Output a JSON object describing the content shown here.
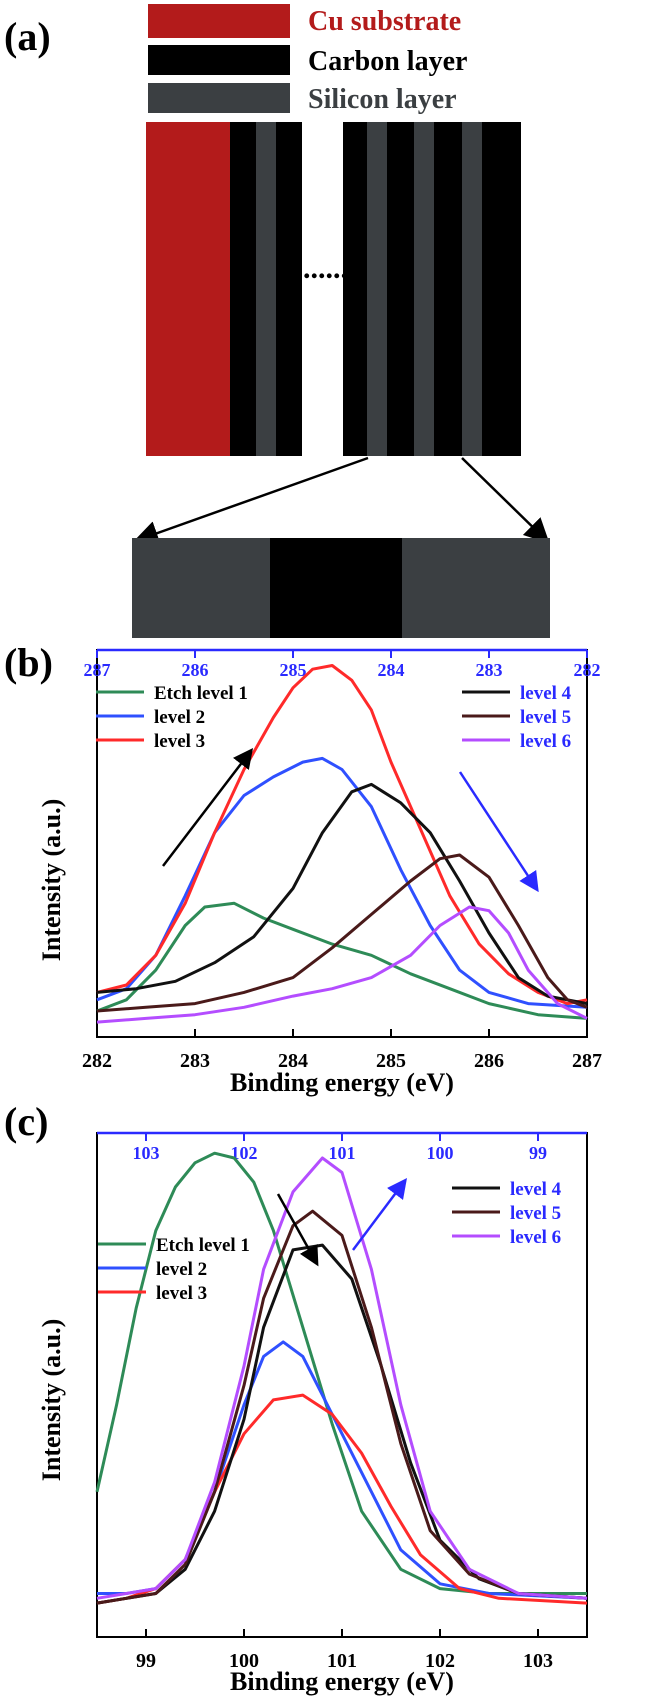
{
  "panel_a": {
    "label": "(a)",
    "legend": [
      {
        "text": "Cu substrate",
        "color": "#b31b1b",
        "text_color": "#b31b1b"
      },
      {
        "text": "Carbon layer",
        "color": "#000000",
        "text_color": "#000000"
      },
      {
        "text": "Silicon layer",
        "color": "#3b3f42",
        "text_color": "#3b3f42"
      }
    ],
    "ellipsis": "......"
  },
  "colors": {
    "etch1": "#2e8b57",
    "level2": "#2f50ff",
    "level3": "#ff2a2a",
    "level4": "#111111",
    "level5": "#4a1a1a",
    "level6": "#b44dff",
    "top_axis": "#2a2aff"
  },
  "chart_data": [
    {
      "type": "line",
      "panel_label": "(b)",
      "xlabel": "Binding energy (eV)",
      "ylabel": "Intensity (a.u.)",
      "xlim": [
        282,
        287
      ],
      "x_ticks": [
        "282",
        "283",
        "284",
        "285",
        "286",
        "287"
      ],
      "top_xlim": [
        287,
        282
      ],
      "top_ticks": [
        "287",
        "286",
        "285",
        "284",
        "283",
        "282"
      ],
      "legend_left": [
        "Etch level 1",
        "level 2",
        "level 3"
      ],
      "legend_right": [
        "level 4",
        "level 5",
        "level 6"
      ],
      "series": [
        {
          "name": "Etch level 1",
          "axis": "bottom",
          "color_key": "etch1",
          "points": [
            [
              282.0,
              0.07
            ],
            [
              282.3,
              0.1
            ],
            [
              282.6,
              0.18
            ],
            [
              282.9,
              0.3
            ],
            [
              283.1,
              0.35
            ],
            [
              283.4,
              0.36
            ],
            [
              283.7,
              0.32
            ],
            [
              284.0,
              0.29
            ],
            [
              284.4,
              0.25
            ],
            [
              284.8,
              0.22
            ],
            [
              285.2,
              0.17
            ],
            [
              285.6,
              0.13
            ],
            [
              286.0,
              0.09
            ],
            [
              286.5,
              0.06
            ],
            [
              287.0,
              0.05
            ]
          ]
        },
        {
          "name": "level 2",
          "axis": "bottom",
          "color_key": "level2",
          "points": [
            [
              282.0,
              0.1
            ],
            [
              282.3,
              0.13
            ],
            [
              282.6,
              0.22
            ],
            [
              282.9,
              0.38
            ],
            [
              283.2,
              0.55
            ],
            [
              283.5,
              0.65
            ],
            [
              283.8,
              0.7
            ],
            [
              284.1,
              0.74
            ],
            [
              284.3,
              0.75
            ],
            [
              284.5,
              0.72
            ],
            [
              284.8,
              0.62
            ],
            [
              285.1,
              0.45
            ],
            [
              285.4,
              0.3
            ],
            [
              285.7,
              0.18
            ],
            [
              286.0,
              0.12
            ],
            [
              286.4,
              0.09
            ],
            [
              287.0,
              0.08
            ]
          ]
        },
        {
          "name": "level 3",
          "axis": "bottom",
          "color_key": "level3",
          "points": [
            [
              282.0,
              0.12
            ],
            [
              282.3,
              0.14
            ],
            [
              282.6,
              0.22
            ],
            [
              282.9,
              0.36
            ],
            [
              283.2,
              0.55
            ],
            [
              283.5,
              0.72
            ],
            [
              283.8,
              0.86
            ],
            [
              284.0,
              0.94
            ],
            [
              284.2,
              0.99
            ],
            [
              284.4,
              1.0
            ],
            [
              284.6,
              0.96
            ],
            [
              284.8,
              0.88
            ],
            [
              285.0,
              0.74
            ],
            [
              285.3,
              0.56
            ],
            [
              285.6,
              0.38
            ],
            [
              285.9,
              0.25
            ],
            [
              286.2,
              0.17
            ],
            [
              286.5,
              0.12
            ],
            [
              286.8,
              0.09
            ],
            [
              287.0,
              0.1
            ]
          ]
        },
        {
          "name": "level 4",
          "axis": "top",
          "color_key": "level4",
          "points": [
            [
              287.0,
              0.12
            ],
            [
              286.6,
              0.13
            ],
            [
              286.2,
              0.15
            ],
            [
              285.8,
              0.2
            ],
            [
              285.4,
              0.27
            ],
            [
              285.0,
              0.4
            ],
            [
              284.7,
              0.55
            ],
            [
              284.4,
              0.66
            ],
            [
              284.2,
              0.68
            ],
            [
              283.9,
              0.63
            ],
            [
              283.6,
              0.55
            ],
            [
              283.3,
              0.42
            ],
            [
              283.0,
              0.28
            ],
            [
              282.7,
              0.16
            ],
            [
              282.4,
              0.11
            ],
            [
              282.2,
              0.1
            ],
            [
              282.0,
              0.09
            ]
          ]
        },
        {
          "name": "level 5",
          "axis": "top",
          "color_key": "level5",
          "points": [
            [
              287.0,
              0.07
            ],
            [
              286.5,
              0.08
            ],
            [
              286.0,
              0.09
            ],
            [
              285.5,
              0.12
            ],
            [
              285.0,
              0.16
            ],
            [
              284.6,
              0.24
            ],
            [
              284.2,
              0.33
            ],
            [
              283.8,
              0.42
            ],
            [
              283.5,
              0.48
            ],
            [
              283.3,
              0.49
            ],
            [
              283.0,
              0.43
            ],
            [
              282.7,
              0.3
            ],
            [
              282.4,
              0.16
            ],
            [
              282.2,
              0.1
            ],
            [
              282.0,
              0.08
            ]
          ]
        },
        {
          "name": "level 6",
          "axis": "top",
          "color_key": "level6",
          "points": [
            [
              287.0,
              0.04
            ],
            [
              286.5,
              0.05
            ],
            [
              286.0,
              0.06
            ],
            [
              285.5,
              0.08
            ],
            [
              285.0,
              0.11
            ],
            [
              284.6,
              0.13
            ],
            [
              284.2,
              0.16
            ],
            [
              283.8,
              0.22
            ],
            [
              283.5,
              0.3
            ],
            [
              283.2,
              0.35
            ],
            [
              283.0,
              0.34
            ],
            [
              282.8,
              0.28
            ],
            [
              282.6,
              0.18
            ],
            [
              282.3,
              0.09
            ],
            [
              282.0,
              0.05
            ]
          ]
        }
      ]
    },
    {
      "type": "line",
      "panel_label": "(c)",
      "xlabel": "Binding energy (eV)",
      "ylabel": "Intensity (a.u.)",
      "xlim": [
        98.5,
        103.5
      ],
      "x_ticks": [
        "99",
        "100",
        "101",
        "102",
        "103"
      ],
      "top_xlim": [
        103.5,
        98.5
      ],
      "top_ticks": [
        "103",
        "102",
        "101",
        "100",
        "99"
      ],
      "legend_left": [
        "Etch level 1",
        "level 2",
        "level 3"
      ],
      "legend_right": [
        "level 4",
        "level 5",
        "level 6"
      ],
      "series": [
        {
          "name": "Etch level 1",
          "axis": "bottom",
          "color_key": "etch1",
          "points": [
            [
              98.5,
              0.3
            ],
            [
              98.7,
              0.48
            ],
            [
              98.9,
              0.68
            ],
            [
              99.1,
              0.84
            ],
            [
              99.3,
              0.93
            ],
            [
              99.5,
              0.98
            ],
            [
              99.7,
              1.0
            ],
            [
              99.9,
              0.99
            ],
            [
              100.1,
              0.94
            ],
            [
              100.3,
              0.84
            ],
            [
              100.6,
              0.64
            ],
            [
              100.9,
              0.44
            ],
            [
              101.2,
              0.26
            ],
            [
              101.6,
              0.14
            ],
            [
              102.0,
              0.1
            ],
            [
              102.5,
              0.09
            ],
            [
              103.5,
              0.09
            ]
          ]
        },
        {
          "name": "level 2",
          "axis": "bottom",
          "color_key": "level2",
          "points": [
            [
              98.5,
              0.09
            ],
            [
              98.8,
              0.09
            ],
            [
              99.1,
              0.1
            ],
            [
              99.4,
              0.16
            ],
            [
              99.7,
              0.3
            ],
            [
              100.0,
              0.48
            ],
            [
              100.2,
              0.58
            ],
            [
              100.4,
              0.61
            ],
            [
              100.6,
              0.58
            ],
            [
              100.8,
              0.5
            ],
            [
              101.0,
              0.42
            ],
            [
              101.3,
              0.3
            ],
            [
              101.6,
              0.18
            ],
            [
              102.0,
              0.11
            ],
            [
              102.5,
              0.09
            ],
            [
              103.5,
              0.08
            ]
          ]
        },
        {
          "name": "level 3",
          "axis": "bottom",
          "color_key": "level3",
          "points": [
            [
              98.5,
              0.07
            ],
            [
              98.8,
              0.08
            ],
            [
              99.1,
              0.1
            ],
            [
              99.4,
              0.16
            ],
            [
              99.7,
              0.3
            ],
            [
              100.0,
              0.42
            ],
            [
              100.3,
              0.49
            ],
            [
              100.6,
              0.5
            ],
            [
              100.9,
              0.46
            ],
            [
              101.2,
              0.38
            ],
            [
              101.5,
              0.27
            ],
            [
              101.8,
              0.17
            ],
            [
              102.2,
              0.1
            ],
            [
              102.6,
              0.08
            ],
            [
              103.5,
              0.07
            ]
          ]
        },
        {
          "name": "level 4",
          "axis": "top",
          "color_key": "level4",
          "points": [
            [
              103.5,
              0.07
            ],
            [
              103.2,
              0.08
            ],
            [
              102.9,
              0.09
            ],
            [
              102.6,
              0.14
            ],
            [
              102.3,
              0.26
            ],
            [
              102.0,
              0.45
            ],
            [
              101.8,
              0.64
            ],
            [
              101.5,
              0.8
            ],
            [
              101.2,
              0.81
            ],
            [
              100.9,
              0.74
            ],
            [
              100.6,
              0.56
            ],
            [
              100.3,
              0.36
            ],
            [
              100.0,
              0.2
            ],
            [
              99.6,
              0.12
            ],
            [
              99.2,
              0.09
            ],
            [
              98.5,
              0.08
            ]
          ]
        },
        {
          "name": "level 5",
          "axis": "top",
          "color_key": "level5",
          "points": [
            [
              103.5,
              0.07
            ],
            [
              103.2,
              0.08
            ],
            [
              102.9,
              0.09
            ],
            [
              102.6,
              0.15
            ],
            [
              102.3,
              0.3
            ],
            [
              102.0,
              0.52
            ],
            [
              101.8,
              0.7
            ],
            [
              101.5,
              0.85
            ],
            [
              101.3,
              0.88
            ],
            [
              101.0,
              0.83
            ],
            [
              100.7,
              0.64
            ],
            [
              100.4,
              0.4
            ],
            [
              100.1,
              0.22
            ],
            [
              99.7,
              0.13
            ],
            [
              99.2,
              0.09
            ],
            [
              98.5,
              0.08
            ]
          ]
        },
        {
          "name": "level 6",
          "axis": "top",
          "color_key": "level6",
          "points": [
            [
              103.5,
              0.08
            ],
            [
              103.2,
              0.09
            ],
            [
              102.9,
              0.1
            ],
            [
              102.6,
              0.16
            ],
            [
              102.3,
              0.32
            ],
            [
              102.0,
              0.56
            ],
            [
              101.8,
              0.76
            ],
            [
              101.5,
              0.92
            ],
            [
              101.2,
              0.99
            ],
            [
              101.0,
              0.96
            ],
            [
              100.7,
              0.76
            ],
            [
              100.4,
              0.48
            ],
            [
              100.1,
              0.26
            ],
            [
              99.7,
              0.14
            ],
            [
              99.2,
              0.09
            ],
            [
              98.5,
              0.08
            ]
          ]
        }
      ]
    }
  ]
}
